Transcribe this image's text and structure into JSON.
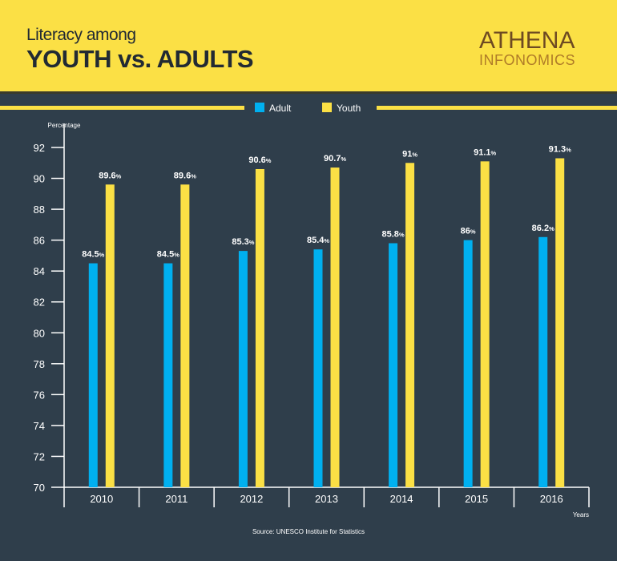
{
  "header": {
    "title_line1": "Literacy among",
    "title_line2": "YOUTH vs. ADULTS",
    "logo_line1": "ATHENA",
    "logo_line2": "INFONOMICS"
  },
  "chart_data": {
    "type": "bar",
    "title": "Literacy among YOUTH vs. ADULTS",
    "ylabel": "Percentage",
    "xlabel": "Years",
    "ylim": [
      70,
      92
    ],
    "yticks": [
      70,
      72,
      74,
      76,
      78,
      80,
      82,
      84,
      86,
      88,
      90,
      92
    ],
    "categories": [
      "2010",
      "2011",
      "2012",
      "2013",
      "2014",
      "2015",
      "2016"
    ],
    "series": [
      {
        "name": "Adult",
        "color": "#00b0f0",
        "values": [
          84.5,
          84.5,
          85.3,
          85.4,
          85.8,
          86,
          86.2
        ]
      },
      {
        "name": "Youth",
        "color": "#fbe045",
        "values": [
          89.6,
          89.6,
          90.6,
          90.7,
          91,
          91.1,
          91.3
        ]
      }
    ],
    "value_suffix": "%",
    "legend": "top-center",
    "grid": false,
    "source": "Source: UNESCO Institute for Statistics"
  }
}
